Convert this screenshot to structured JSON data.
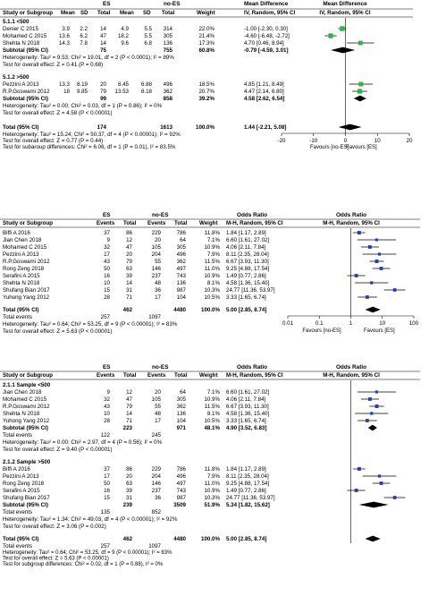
{
  "chart_data": [
    {
      "type": "table",
      "panel": "mean-difference",
      "group1_header": "ES",
      "group2_header": "no-ES",
      "title": "Mean Difference",
      "columns": [
        "Study or Subgroup",
        "Mean",
        "SD",
        "Total",
        "Mean",
        "SD",
        "Total",
        "Weight",
        "IV, Random, 95% CI",
        "IV, Random, 95% CI"
      ],
      "x_axis": {
        "scale": "linear",
        "ticks": [
          "-20",
          "-10",
          "0",
          "10",
          "20"
        ],
        "min": -20,
        "max": 20,
        "left_label": "Favours [no-ES]",
        "right_label": "Favours [ES]"
      },
      "subgroups": [
        {
          "name": "5.1.1 <500",
          "rows": [
            {
              "study": "Denier C 2015",
              "m1": "3.9",
              "sd1": "2.2",
              "n1": "14",
              "m2": "4.9",
              "sd2": "5.5",
              "n2": "314",
              "weight": "22.0%",
              "ci": "-1.00 [-2.30, 0.30]",
              "est": -1.0,
              "lo": -2.3,
              "hi": 0.3,
              "w": 22.0
            },
            {
              "study": "Mohamed C 2015",
              "m1": "13.6",
              "sd1": "6.2",
              "n1": "47",
              "m2": "18.2",
              "sd2": "5.5",
              "n2": "305",
              "weight": "21.4%",
              "ci": "-4.60 [-6.48, -2.72]",
              "est": -4.6,
              "lo": -6.48,
              "hi": -2.72,
              "w": 21.4
            },
            {
              "study": "Shehta N 2018",
              "m1": "14.3",
              "sd1": "7.8",
              "n1": "14",
              "m2": "9.6",
              "sd2": "6.8",
              "n2": "136",
              "weight": "17.3%",
              "ci": "4.70 [0.46, 8.94]",
              "est": 4.7,
              "lo": 0.46,
              "hi": 8.94,
              "w": 17.3
            }
          ],
          "subtotal": {
            "label": "Subtotal (95% CI)",
            "n1": "75",
            "n2": "755",
            "weight": "60.8%",
            "ci": "-0.79 [-4.59, 3.01]",
            "est": -0.79,
            "lo": -4.59,
            "hi": 3.01
          },
          "heterogeneity": "Heterogeneity: Tau² = 9.53; Chi² = 19.01, df = 2 (P < 0.0001); I² = 89%",
          "overall_effect": "Test for overall effect: Z = 0.41 (P = 0.68)"
        },
        {
          "name": "5.1.2 >500",
          "rows": [
            {
              "study": "Pezzini A 2013",
              "m1": "13.3",
              "sd1": "8.19",
              "n1": "20",
              "m2": "8.45",
              "sd2": "6.88",
              "n2": "496",
              "weight": "18.5%",
              "ci": "4.85 [1.21, 8.49]",
              "est": 4.85,
              "lo": 1.21,
              "hi": 8.49,
              "w": 18.5
            },
            {
              "study": "R.P.Goswami 2012",
              "m1": "18",
              "sd1": "9.85",
              "n1": "79",
              "m2": "13.53",
              "sd2": "8.18",
              "n2": "362",
              "weight": "20.7%",
              "ci": "4.47 [2.14, 6.80]",
              "est": 4.47,
              "lo": 2.14,
              "hi": 6.8,
              "w": 20.7
            }
          ],
          "subtotal": {
            "label": "Subtotal (95% CI)",
            "n1": "99",
            "n2": "858",
            "weight": "39.2%",
            "ci": "4.58 [2.62, 6.54]",
            "est": 4.58,
            "lo": 2.62,
            "hi": 6.54
          },
          "heterogeneity": "Heterogeneity: Tau² = 0.00; Chi² = 0.03, df = 1 (P = 0.86); I² = 0%",
          "overall_effect": "Test for overall effect: Z = 4.58 (P < 0.00001)"
        }
      ],
      "total": {
        "label": "Total (95% CI)",
        "n1": "174",
        "n2": "1613",
        "weight": "100.0%",
        "ci": "1.44 [-2.21, 5.08]",
        "est": 1.44,
        "lo": -2.21,
        "hi": 5.08
      },
      "footer": [
        "Heterogeneity: Tau² = 15.24; Chi² = 50.37, df = 4 (P < 0.00001); I² = 92%",
        "Test for overall effect: Z = 0.77 (P = 0.44)",
        "Test for subaroup differences: Chi² = 6.06, df = 1 (P = 0.01), I² = 83.5%"
      ]
    },
    {
      "type": "table",
      "panel": "odds-ratio",
      "group1_header": "ES",
      "group2_header": "no-ES",
      "title": "Odds Ratio",
      "columns": [
        "Study or Subgroup",
        "Events",
        "Total",
        "Events",
        "Total",
        "Weight",
        "M-H, Random, 95% CI",
        "M-H, Random, 95% CI"
      ],
      "x_axis": {
        "scale": "log",
        "ticks": [
          "0.01",
          "0.1",
          "1",
          "10",
          "100"
        ],
        "min": 0.01,
        "max": 100,
        "left_label": "Favours [no-ES]",
        "right_label": "Favours [ES]"
      },
      "rows": [
        {
          "study": "Biffi A 2016",
          "e1": "37",
          "n1": "86",
          "e2": "229",
          "n2": "786",
          "weight": "11.8%",
          "ci": "1.84 [1.17, 2.89]",
          "est": 1.84,
          "lo": 1.17,
          "hi": 2.89,
          "w": 11.8
        },
        {
          "study": "Jian Chen 2018",
          "e1": "9",
          "n1": "12",
          "e2": "20",
          "n2": "64",
          "weight": "7.1%",
          "ci": "6.60 [1.61, 27.02]",
          "est": 6.6,
          "lo": 1.61,
          "hi": 27.02,
          "w": 7.1
        },
        {
          "study": "Mohamed C 2015",
          "e1": "32",
          "n1": "47",
          "e2": "105",
          "n2": "305",
          "weight": "10.9%",
          "ci": "4.06 [2.11, 7.84]",
          "est": 4.06,
          "lo": 2.11,
          "hi": 7.84,
          "w": 10.9
        },
        {
          "study": "Pezzini A 2013",
          "e1": "17",
          "n1": "20",
          "e2": "204",
          "n2": "496",
          "weight": "7.9%",
          "ci": "8.11 [2.35, 28.04]",
          "est": 8.11,
          "lo": 2.35,
          "hi": 28.04,
          "w": 7.9
        },
        {
          "study": "R.P.Goswami 2012",
          "e1": "43",
          "n1": "79",
          "e2": "55",
          "n2": "362",
          "weight": "11.5%",
          "ci": "6.67 [3.93, 11.30]",
          "est": 6.67,
          "lo": 3.93,
          "hi": 11.3,
          "w": 11.5
        },
        {
          "study": "Rong Zeng 2018",
          "e1": "50",
          "n1": "63",
          "e2": "146",
          "n2": "497",
          "weight": "11.0%",
          "ci": "9.25 [4.88, 17.54]",
          "est": 9.25,
          "lo": 4.88,
          "hi": 17.54,
          "w": 11.0
        },
        {
          "study": "Serafini A 2015",
          "e1": "16",
          "n1": "39",
          "e2": "237",
          "n2": "743",
          "weight": "10.9%",
          "ci": "1.49 [0.77, 2.86]",
          "est": 1.49,
          "lo": 0.77,
          "hi": 2.86,
          "w": 10.9
        },
        {
          "study": "Shehta N 2018",
          "e1": "10",
          "n1": "14",
          "e2": "48",
          "n2": "136",
          "weight": "8.1%",
          "ci": "4.58 [1.36, 15.40]",
          "est": 4.58,
          "lo": 1.36,
          "hi": 15.4,
          "w": 8.1
        },
        {
          "study": "Shufang Bian 2017",
          "e1": "15",
          "n1": "31",
          "e2": "36",
          "n2": "987",
          "weight": "10.3%",
          "ci": "24.77 [11.36, 53.97]",
          "est": 24.77,
          "lo": 11.36,
          "hi": 53.97,
          "w": 10.3
        },
        {
          "study": "Yuhong Yang 2012",
          "e1": "28",
          "n1": "71",
          "e2": "17",
          "n2": "104",
          "weight": "10.5%",
          "ci": "3.33 [1.65, 6.74]",
          "est": 3.33,
          "lo": 1.65,
          "hi": 6.74,
          "w": 10.5
        }
      ],
      "total": {
        "label": "Total (95% CI)",
        "n1": "462",
        "n2": "4480",
        "weight": "100.0%",
        "ci": "5.00 [2.85, 8.74]",
        "est": 5.0,
        "lo": 2.85,
        "hi": 8.74
      },
      "total_events": {
        "label": "Total events",
        "e1": "257",
        "e2": "1097"
      },
      "footer": [
        "Heterogeneity: Tau² = 0.64; Chi² = 53.25, df = 9 (P < 0.00001); I² = 83%",
        "Test for overall effect: Z = 5.63 (P < 0.00001)"
      ]
    },
    {
      "type": "table",
      "panel": "odds-ratio-subgroups",
      "group1_header": "ES",
      "group2_header": "no-ES",
      "title": "Odds Ratio",
      "columns": [
        "Study or Subgroup",
        "Events",
        "Total",
        "Events",
        "Total",
        "Weight",
        "M-H, Random, 95% CI",
        "M-H, Random, 95% CI"
      ],
      "x_axis": {
        "scale": "log",
        "min": 0.01,
        "max": 100
      },
      "subgroups": [
        {
          "name": "2.1.1 Sample <500",
          "rows": [
            {
              "study": "Jian Chen 2018",
              "e1": "9",
              "n1": "12",
              "e2": "20",
              "n2": "64",
              "weight": "7.1%",
              "ci": "6.60 [1.61, 27.02]",
              "est": 6.6,
              "lo": 1.61,
              "hi": 27.02,
              "w": 7.1
            },
            {
              "study": "Mohamed C 2015",
              "e1": "32",
              "n1": "47",
              "e2": "105",
              "n2": "305",
              "weight": "10.9%",
              "ci": "4.06 [2.11, 7.84]",
              "est": 4.06,
              "lo": 2.11,
              "hi": 7.84,
              "w": 10.9
            },
            {
              "study": "R.P.Goswami 2012",
              "e1": "43",
              "n1": "79",
              "e2": "55",
              "n2": "362",
              "weight": "11.5%",
              "ci": "6.67 [3.93, 11.30]",
              "est": 6.67,
              "lo": 3.93,
              "hi": 11.3,
              "w": 11.5
            },
            {
              "study": "Shehta N 2018",
              "e1": "10",
              "n1": "14",
              "e2": "48",
              "n2": "136",
              "weight": "8.1%",
              "ci": "4.58 [1.36, 15.40]",
              "est": 4.58,
              "lo": 1.36,
              "hi": 15.4,
              "w": 8.1
            },
            {
              "study": "Yuhong Yang 2012",
              "e1": "28",
              "n1": "71",
              "e2": "17",
              "n2": "104",
              "weight": "10.5%",
              "ci": "3.33 [1.65, 6.74]",
              "est": 3.33,
              "lo": 1.65,
              "hi": 6.74,
              "w": 10.5
            }
          ],
          "subtotal": {
            "label": "Subtotal (95% CI)",
            "n1": "223",
            "n2": "971",
            "weight": "48.1%",
            "ci": "4.90 [3.52, 6.83]",
            "est": 4.9,
            "lo": 3.52,
            "hi": 6.83
          },
          "total_events": {
            "label": "Total events",
            "e1": "122",
            "e2": "245"
          },
          "heterogeneity": "Heterogeneity: Tau² = 0.00; Chi² = 2.97, df = 4 (P = 0.56); I² = 0%",
          "overall_effect": "Test for overall effect: Z = 9.40 (P < 0.00001)"
        },
        {
          "name": "2.1.2 Sample >500",
          "rows": [
            {
              "study": "Biffi A 2016",
              "e1": "37",
              "n1": "86",
              "e2": "229",
              "n2": "786",
              "weight": "11.8%",
              "ci": "1.84 [1.17, 2.89]",
              "est": 1.84,
              "lo": 1.17,
              "hi": 2.89,
              "w": 11.8
            },
            {
              "study": "Pezzini A 2013",
              "e1": "17",
              "n1": "20",
              "e2": "204",
              "n2": "496",
              "weight": "7.9%",
              "ci": "8.11 [2.35, 28.04]",
              "est": 8.11,
              "lo": 2.35,
              "hi": 28.04,
              "w": 7.9
            },
            {
              "study": "Rong Zeng 2018",
              "e1": "50",
              "n1": "63",
              "e2": "146",
              "n2": "497",
              "weight": "11.0%",
              "ci": "9.25 [4.88, 17.54]",
              "est": 9.25,
              "lo": 4.88,
              "hi": 17.54,
              "w": 11.0
            },
            {
              "study": "Serafini A 2015",
              "e1": "16",
              "n1": "39",
              "e2": "237",
              "n2": "743",
              "weight": "10.9%",
              "ci": "1.49 [0.77, 2.86]",
              "est": 1.49,
              "lo": 0.77,
              "hi": 2.86,
              "w": 10.9
            },
            {
              "study": "Shufang Bian 2017",
              "e1": "15",
              "n1": "31",
              "e2": "36",
              "n2": "987",
              "weight": "10.3%",
              "ci": "24.77 [11.36, 53.97]",
              "est": 24.77,
              "lo": 11.36,
              "hi": 53.97,
              "w": 10.3
            }
          ],
          "subtotal": {
            "label": "Subtotal (95% CI)",
            "n1": "239",
            "n2": "3509",
            "weight": "51.9%",
            "ci": "5.34 [1.82, 15.62]",
            "est": 5.34,
            "lo": 1.82,
            "hi": 15.62
          },
          "total_events": {
            "label": "Total events",
            "e1": "135",
            "e2": "852"
          },
          "heterogeneity": "Heterogeneity: Tau² = 1.34; Chi² = 49.03, df = 4 (P < 0.00001); I² = 92%",
          "overall_effect": "Test for overall effect: Z = 3.06 (P = 0.002)"
        }
      ],
      "total": {
        "label": "Total (95% CI)",
        "n1": "462",
        "n2": "4480",
        "weight": "100.0%",
        "ci": "5.00 [2.85, 8.74]",
        "est": 5.0,
        "lo": 2.85,
        "hi": 8.74
      },
      "total_events": {
        "label": "Total events",
        "e1": "257",
        "e2": "1097"
      },
      "footer": [
        "Heterogeneity: Tau² = 0.64; Chi² = 53.25, df = 9 (P < 0.00001); I² = 83%",
        "Test for overall effect: Z = 5.63 (P < 0.00001)",
        "Test for subgroup differences: Chi² = 0.02, df = 1 (P = 0.88), I² = 0%"
      ]
    }
  ],
  "colors": {
    "text": "#000000",
    "marker_md": "#2db34a",
    "marker_or": "#1f3fa8",
    "diamond": "#000000",
    "line": "#000000"
  }
}
